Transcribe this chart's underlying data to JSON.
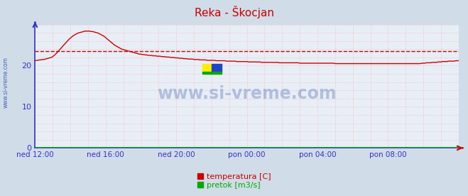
{
  "title": "Reka - Škocjan",
  "title_color": "#cc0000",
  "bg_color": "#d0dce8",
  "plot_bg_color": "#e8eef5",
  "xlabel": "",
  "ylabel": "",
  "ylim": [
    0,
    30
  ],
  "yticks": [
    0,
    10,
    20
  ],
  "x_tick_labels": [
    "ned 12:00",
    "ned 16:00",
    "ned 20:00",
    "pon 00:00",
    "pon 04:00",
    "pon 08:00"
  ],
  "x_tick_positions": [
    0,
    48,
    96,
    144,
    192,
    240
  ],
  "total_points": 289,
  "avg_line_y": 23.5,
  "avg_line_color": "#cc0000",
  "temp_color": "#cc0000",
  "pretok_color": "#00aa00",
  "axis_color": "#3333cc",
  "tick_color": "#3333cc",
  "legend_labels": [
    "temperatura [C]",
    "pretok [m3/s]"
  ],
  "watermark": "www.si-vreme.com",
  "watermark_color": "#2244aa",
  "left_label": "www.si-vreme.com",
  "temp_data": [
    21.2,
    21.3,
    21.3,
    21.4,
    21.4,
    21.5,
    21.5,
    21.6,
    21.7,
    21.8,
    21.9,
    22.0,
    22.2,
    22.5,
    22.8,
    23.2,
    23.6,
    24.0,
    24.4,
    24.8,
    25.2,
    25.6,
    26.0,
    26.4,
    26.7,
    27.0,
    27.3,
    27.5,
    27.7,
    27.9,
    28.0,
    28.1,
    28.2,
    28.3,
    28.4,
    28.4,
    28.4,
    28.4,
    28.3,
    28.3,
    28.2,
    28.1,
    28.0,
    27.9,
    27.7,
    27.5,
    27.3,
    27.1,
    26.8,
    26.5,
    26.2,
    25.9,
    25.6,
    25.3,
    25.0,
    24.8,
    24.6,
    24.4,
    24.2,
    24.0,
    23.9,
    23.8,
    23.7,
    23.6,
    23.5,
    23.4,
    23.3,
    23.2,
    23.1,
    23.0,
    22.9,
    22.8,
    22.8,
    22.7,
    22.7,
    22.6,
    22.6,
    22.5,
    22.5,
    22.5,
    22.4,
    22.4,
    22.4,
    22.3,
    22.3,
    22.3,
    22.2,
    22.2,
    22.2,
    22.1,
    22.1,
    22.1,
    22.0,
    22.0,
    22.0,
    21.9,
    21.9,
    21.9,
    21.8,
    21.8,
    21.8,
    21.7,
    21.7,
    21.7,
    21.6,
    21.6,
    21.6,
    21.6,
    21.5,
    21.5,
    21.5,
    21.5,
    21.4,
    21.4,
    21.4,
    21.4,
    21.4,
    21.3,
    21.3,
    21.3,
    21.3,
    21.3,
    21.3,
    21.2,
    21.2,
    21.2,
    21.2,
    21.2,
    21.2,
    21.2,
    21.1,
    21.1,
    21.1,
    21.1,
    21.1,
    21.1,
    21.1,
    21.0,
    21.0,
    21.0,
    21.0,
    21.0,
    21.0,
    21.0,
    21.0,
    20.9,
    20.9,
    20.9,
    20.9,
    20.9,
    20.9,
    20.9,
    20.9,
    20.9,
    20.8,
    20.8,
    20.8,
    20.8,
    20.8,
    20.8,
    20.8,
    20.8,
    20.8,
    20.8,
    20.8,
    20.8,
    20.7,
    20.7,
    20.7,
    20.7,
    20.7,
    20.7,
    20.7,
    20.7,
    20.7,
    20.7,
    20.7,
    20.7,
    20.7,
    20.7,
    20.6,
    20.6,
    20.6,
    20.6,
    20.6,
    20.6,
    20.6,
    20.6,
    20.6,
    20.6,
    20.6,
    20.6,
    20.6,
    20.6,
    20.6,
    20.6,
    20.6,
    20.6,
    20.6,
    20.6,
    20.6,
    20.6,
    20.6,
    20.6,
    20.5,
    20.5,
    20.5,
    20.5,
    20.5,
    20.5,
    20.5,
    20.5,
    20.5,
    20.5,
    20.5,
    20.5,
    20.5,
    20.5,
    20.5,
    20.5,
    20.5,
    20.5,
    20.5,
    20.5,
    20.5,
    20.5,
    20.5,
    20.5,
    20.5,
    20.5,
    20.5,
    20.5,
    20.5,
    20.5,
    20.5,
    20.5,
    20.5,
    20.5,
    20.5,
    20.5,
    20.5,
    20.5,
    20.5,
    20.5,
    20.5,
    20.5,
    20.5,
    20.5,
    20.5,
    20.5,
    20.5,
    20.5,
    20.5,
    20.5,
    20.5,
    20.5,
    20.5,
    20.5,
    20.5,
    20.5,
    20.5,
    20.5,
    20.5,
    20.6,
    20.6,
    20.6,
    20.7,
    20.7,
    20.7,
    20.7,
    20.8,
    20.8,
    20.8,
    20.8,
    20.9,
    20.9,
    20.9,
    21.0,
    21.0,
    21.0,
    21.0,
    21.1,
    21.1,
    21.1,
    21.1,
    21.1,
    21.2,
    21.2,
    21.2
  ]
}
